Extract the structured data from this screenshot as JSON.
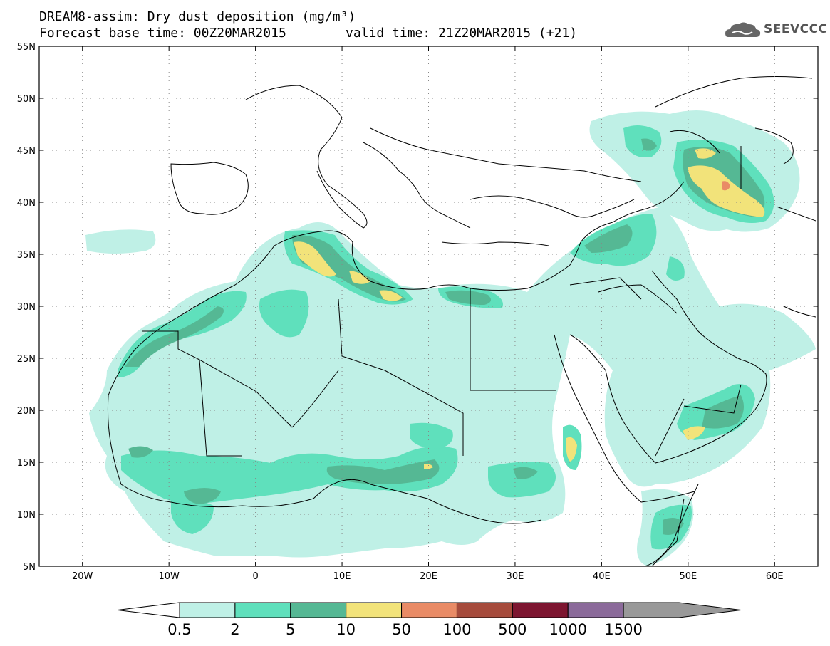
{
  "header": {
    "title": "DREAM8-assim: Dry dust deposition (mg/m³)",
    "base_time": "Forecast base time: 00Z20MAR2015",
    "valid_time": "valid time: 21Z20MAR2015 (+21)",
    "logo_text": "SEEVCCC"
  },
  "map": {
    "lon_range": [
      -25,
      65
    ],
    "lat_range": [
      5,
      55
    ],
    "lat_labels": [
      "55N",
      "50N",
      "45N",
      "40N",
      "35N",
      "30N",
      "25N",
      "20N",
      "15N",
      "10N",
      "5N"
    ],
    "lon_labels": [
      "20W",
      "10W",
      "0",
      "10E",
      "20E",
      "30E",
      "40E",
      "50E",
      "60E"
    ]
  },
  "legend": {
    "labels": [
      "0.5",
      "2",
      "5",
      "10",
      "50",
      "100",
      "500",
      "1000",
      "1500"
    ],
    "colors": [
      "#bff0e6",
      "#5fe0bc",
      "#55b894",
      "#f2e37a",
      "#e98b66",
      "#a64b3c",
      "#7d1530",
      "#8b6a9a",
      "#999999"
    ]
  },
  "colors": {
    "c1": "#bff0e6",
    "c2": "#5fe0bc",
    "c3": "#55b894",
    "c4": "#f2e37a",
    "c5": "#e98b66"
  }
}
